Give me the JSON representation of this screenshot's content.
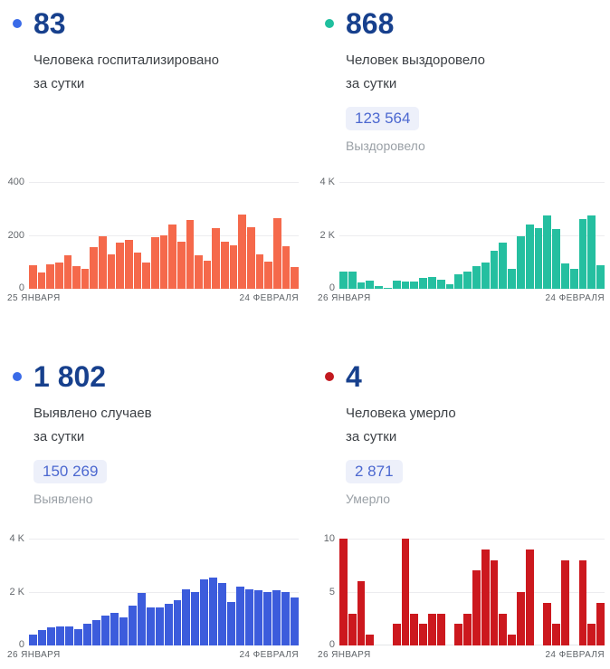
{
  "panels": [
    {
      "headline": "83",
      "subtitle_line1": "Человека госпитализировано",
      "subtitle_line2": "за сутки",
      "bullet_color": "#3A6BE8"
    },
    {
      "headline": "868",
      "subtitle_line1": "Человек выздоровело",
      "subtitle_line2": "за сутки",
      "total_value": "123 564",
      "total_label": "Выздоровело",
      "bullet_color": "#1FBF9E"
    },
    {
      "headline": "1 802",
      "subtitle_line1": "Выявлено случаев",
      "subtitle_line2": "за сутки",
      "total_value": "150 269",
      "total_label": "Выявлено",
      "bullet_color": "#3A6BE8"
    },
    {
      "headline": "4",
      "subtitle_line1": "Человека умерло",
      "subtitle_line2": "за сутки",
      "total_value": "2 871",
      "total_label": "Умерло",
      "bullet_color": "#C2191F"
    }
  ],
  "chart_data": [
    {
      "type": "bar",
      "title": "Человека госпитализировано за сутки",
      "color": "#F5694B",
      "ylim": [
        0,
        400
      ],
      "y_ticks": [
        "400",
        "200",
        "0"
      ],
      "x_ticks": [
        "25 ЯНВАРЯ",
        "24 ФЕВРАЛЯ"
      ],
      "grid": true,
      "legend": false,
      "values": [
        87,
        61,
        93,
        98,
        124,
        84,
        76,
        157,
        195,
        130,
        172,
        183,
        134,
        98,
        192,
        199,
        240,
        177,
        258,
        127,
        104,
        228,
        177,
        164,
        277,
        232,
        130,
        102,
        266,
        160,
        83
      ]
    },
    {
      "type": "bar",
      "title": "Человек выздоровело за сутки",
      "color": "#25BFA0",
      "ylim": [
        0,
        4000
      ],
      "y_ticks": [
        "4 K",
        "2 K",
        "0"
      ],
      "x_ticks": [
        "26 ЯНВАРЯ",
        "24 ФЕВРАЛЯ"
      ],
      "grid": true,
      "legend": false,
      "values": [
        630,
        630,
        225,
        290,
        100,
        25,
        315,
        270,
        270,
        415,
        450,
        350,
        170,
        540,
        650,
        845,
        1000,
        1430,
        1745,
        735,
        1960,
        2420,
        2280,
        2730,
        2225,
        950,
        735,
        2595,
        2730,
        868
      ]
    },
    {
      "type": "bar",
      "title": "Выявлено случаев за сутки",
      "color": "#3C5CDC",
      "ylim": [
        0,
        4000
      ],
      "y_ticks": [
        "4 K",
        "2 K",
        "0"
      ],
      "x_ticks": [
        "26 ЯНВАРЯ",
        "24 ФЕВРАЛЯ"
      ],
      "grid": true,
      "legend": false,
      "values": [
        413,
        570,
        670,
        715,
        726,
        614,
        827,
        950,
        1117,
        1218,
        1061,
        1508,
        1955,
        1408,
        1419,
        1575,
        1709,
        2089,
        2011,
        2480,
        2559,
        2346,
        1620,
        2212,
        2100,
        2078,
        2011,
        2067,
        1989,
        1802
      ]
    },
    {
      "type": "bar",
      "title": "Человека умерло за сутки",
      "color": "#CC181E",
      "ylim": [
        0,
        10
      ],
      "y_ticks": [
        "10",
        "5",
        "0"
      ],
      "x_ticks": [
        "26 ЯНВАРЯ",
        "24 ФЕВРАЛЯ"
      ],
      "grid": true,
      "legend": false,
      "values": [
        10,
        3,
        6,
        1,
        0,
        0,
        2,
        10,
        3,
        2,
        3,
        3,
        0,
        2,
        3,
        7,
        9,
        8,
        3,
        1,
        5,
        9,
        0,
        4,
        2,
        8,
        0,
        8,
        2,
        4
      ]
    }
  ]
}
